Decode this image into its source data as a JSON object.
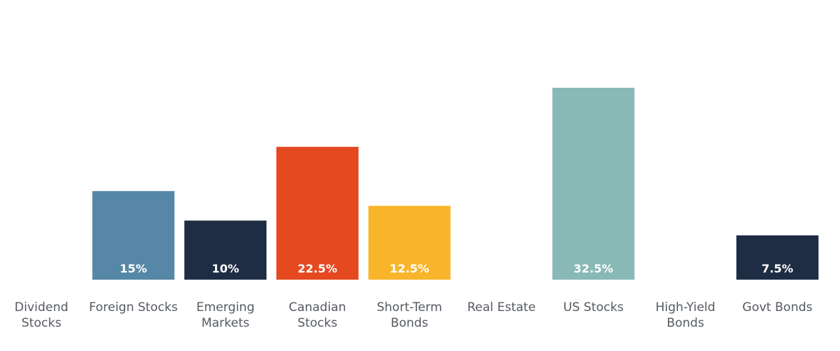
{
  "chart_data": {
    "type": "bar",
    "categories": [
      [
        "Dividend",
        "Stocks"
      ],
      [
        "Foreign Stocks"
      ],
      [
        "Emerging",
        "Markets"
      ],
      [
        "Canadian",
        "Stocks"
      ],
      [
        "Short-Term",
        "Bonds"
      ],
      [
        "Real Estate"
      ],
      [
        "US Stocks"
      ],
      [
        "High-Yield",
        "Bonds"
      ],
      [
        "Govt Bonds"
      ]
    ],
    "values": [
      0,
      15,
      10,
      22.5,
      12.5,
      0,
      32.5,
      0,
      7.5
    ],
    "value_labels": [
      "",
      "15%",
      "10%",
      "22.5%",
      "12.5%",
      "",
      "32.5%",
      "",
      "7.5%"
    ],
    "colors": [
      "#5687a6",
      "#5687a6",
      "#1f2d44",
      "#e4491f",
      "#f8b52b",
      "#5687a6",
      "#88b9b6",
      "#1f2d44",
      "#1f2d44"
    ],
    "ylim": [
      0,
      32.5
    ],
    "title": "",
    "xlabel": "",
    "ylabel": "",
    "grid": false,
    "legend": "none"
  }
}
